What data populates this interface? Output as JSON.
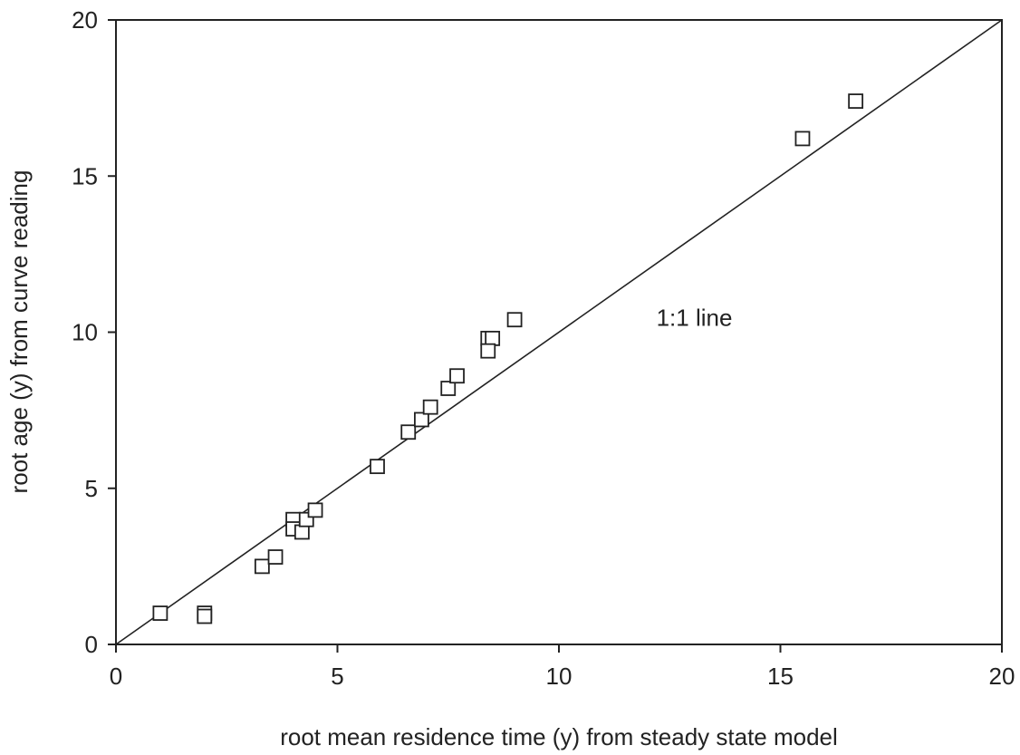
{
  "chart_data": {
    "type": "scatter",
    "title": "",
    "xlabel": "root mean residence time (y) from steady state model",
    "ylabel": "root age (y) from curve reading",
    "xlim": [
      0,
      20
    ],
    "ylim": [
      0,
      20
    ],
    "xticks": [
      "0",
      "5",
      "10",
      "15",
      "20"
    ],
    "yticks": [
      "0",
      "5",
      "10",
      "15",
      "20"
    ],
    "grid": false,
    "marker": "open-square",
    "points": [
      {
        "x": 1.0,
        "y": 1.0
      },
      {
        "x": 2.0,
        "y": 1.0
      },
      {
        "x": 2.0,
        "y": 0.9
      },
      {
        "x": 3.3,
        "y": 2.5
      },
      {
        "x": 3.6,
        "y": 2.8
      },
      {
        "x": 4.0,
        "y": 4.0
      },
      {
        "x": 4.0,
        "y": 3.7
      },
      {
        "x": 4.2,
        "y": 3.6
      },
      {
        "x": 4.3,
        "y": 4.0
      },
      {
        "x": 4.5,
        "y": 4.3
      },
      {
        "x": 5.9,
        "y": 5.7
      },
      {
        "x": 6.6,
        "y": 6.8
      },
      {
        "x": 6.9,
        "y": 7.2
      },
      {
        "x": 7.1,
        "y": 7.6
      },
      {
        "x": 7.5,
        "y": 8.2
      },
      {
        "x": 7.7,
        "y": 8.6
      },
      {
        "x": 8.4,
        "y": 9.8
      },
      {
        "x": 8.5,
        "y": 9.8
      },
      {
        "x": 8.4,
        "y": 9.4
      },
      {
        "x": 9.0,
        "y": 10.4
      },
      {
        "x": 15.5,
        "y": 16.2
      },
      {
        "x": 16.7,
        "y": 17.4
      }
    ],
    "reference_line": {
      "from": [
        0,
        0
      ],
      "to": [
        20,
        20
      ],
      "label": "1:1 line",
      "label_at": [
        12.2,
        10.2
      ]
    }
  }
}
